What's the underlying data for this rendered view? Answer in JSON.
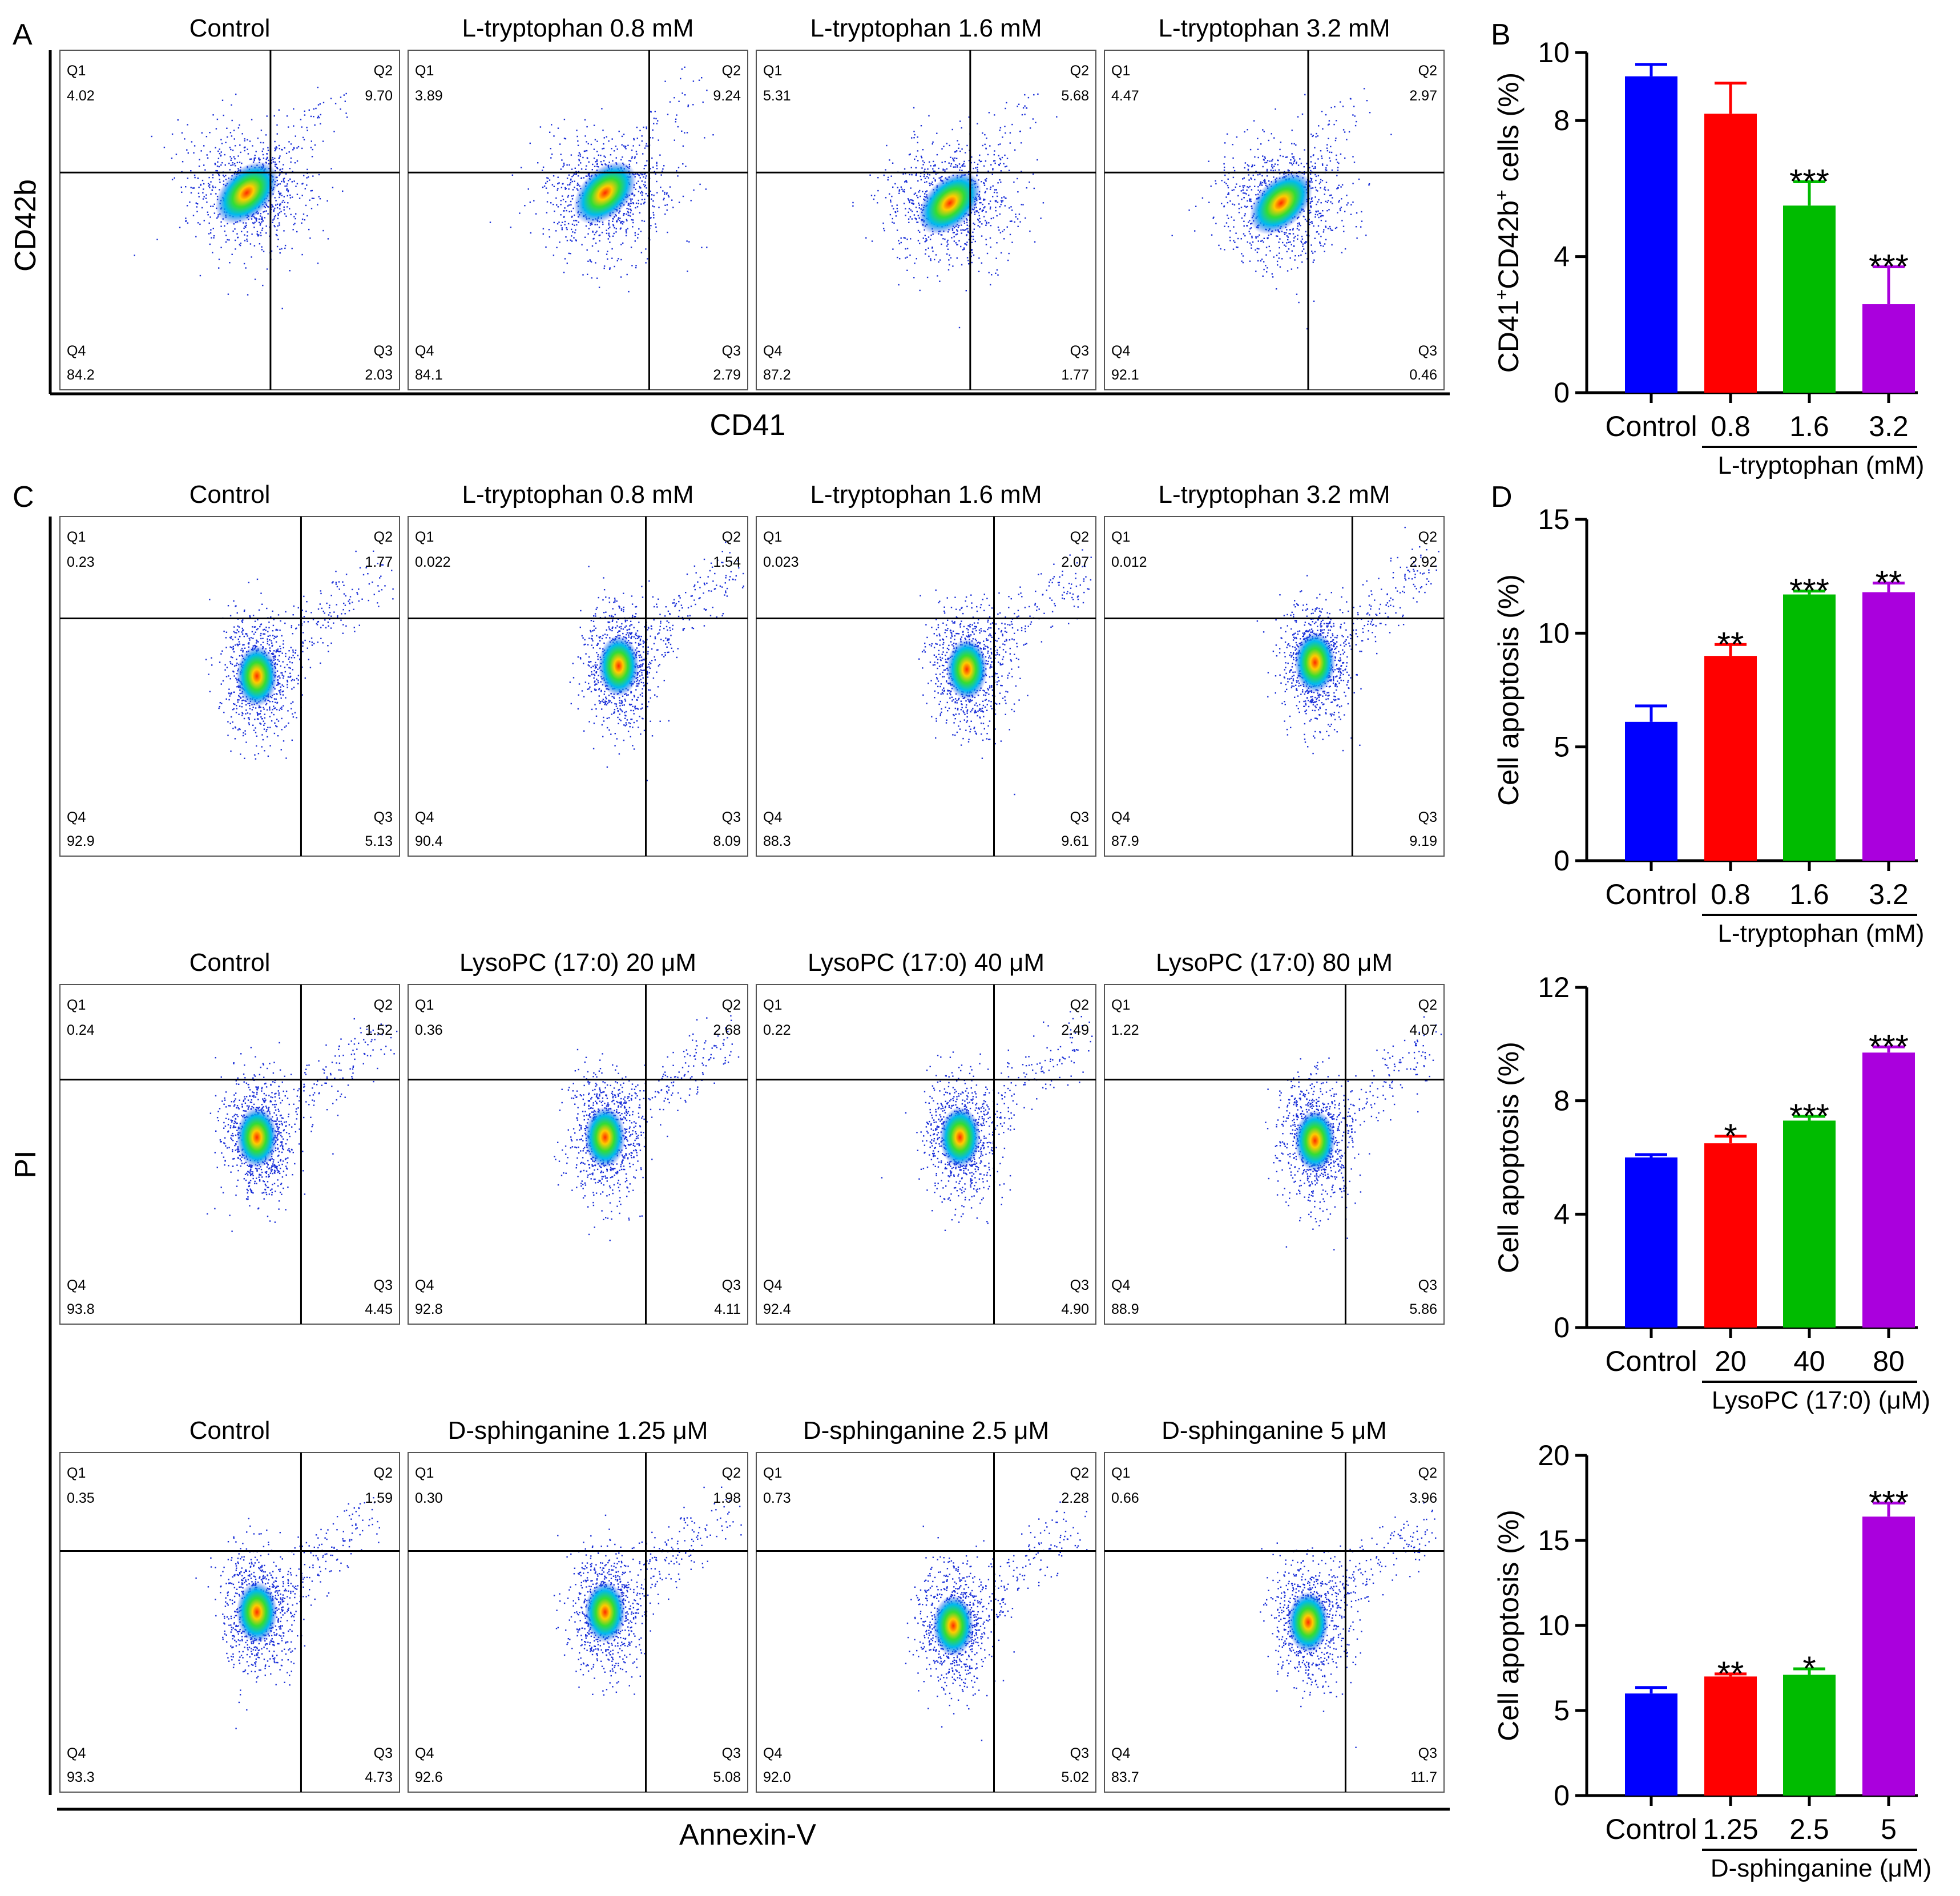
{
  "panel_letters": [
    "A",
    "B",
    "C",
    "D"
  ],
  "colors": {
    "control": "#0000FF",
    "dose1": "#FF0000",
    "dose2": "#00BB00",
    "dose3": "#AA00DD",
    "axis": "#000000",
    "quadline": "#000000"
  },
  "panelA": {
    "y_label": "CD42b",
    "x_label": "CD41",
    "plots": [
      {
        "title": "Control",
        "q": {
          "q1": "4.02",
          "q2": "9.70",
          "q3": "2.03",
          "q4": "84.2"
        }
      },
      {
        "title": "L-tryptophan 0.8 mM",
        "q": {
          "q1": "3.89",
          "q2": "9.24",
          "q3": "2.79",
          "q4": "84.1"
        }
      },
      {
        "title": "L-tryptophan 1.6 mM",
        "q": {
          "q1": "5.31",
          "q2": "5.68",
          "q3": "1.77",
          "q4": "87.2"
        }
      },
      {
        "title": "L-tryptophan 3.2 mM",
        "q": {
          "q1": "4.47",
          "q2": "2.97",
          "q3": "0.46",
          "q4": "92.1"
        }
      }
    ]
  },
  "panelC": {
    "y_label": "PI",
    "x_label": "Annexin-V",
    "rows": [
      [
        {
          "title": "Control",
          "q": {
            "q1": "0.23",
            "q2": "1.77",
            "q3": "5.13",
            "q4": "92.9"
          }
        },
        {
          "title": "L-tryptophan 0.8 mM",
          "q": {
            "q1": "0.022",
            "q2": "1.54",
            "q3": "8.09",
            "q4": "90.4"
          }
        },
        {
          "title": "L-tryptophan 1.6 mM",
          "q": {
            "q1": "0.023",
            "q2": "2.07",
            "q3": "9.61",
            "q4": "88.3"
          }
        },
        {
          "title": "L-tryptophan 3.2 mM",
          "q": {
            "q1": "0.012",
            "q2": "2.92",
            "q3": "9.19",
            "q4": "87.9"
          }
        }
      ],
      [
        {
          "title": "Control",
          "q": {
            "q1": "0.24",
            "q2": "1.52",
            "q3": "4.45",
            "q4": "93.8"
          }
        },
        {
          "title": "LysoPC (17:0) 20 μM",
          "q": {
            "q1": "0.36",
            "q2": "2.68",
            "q3": "4.11",
            "q4": "92.8"
          }
        },
        {
          "title": "LysoPC (17:0) 40 μM",
          "q": {
            "q1": "0.22",
            "q2": "2.49",
            "q3": "4.90",
            "q4": "92.4"
          }
        },
        {
          "title": "LysoPC (17:0) 80 μM",
          "q": {
            "q1": "1.22",
            "q2": "4.07",
            "q3": "5.86",
            "q4": "88.9"
          }
        }
      ],
      [
        {
          "title": "Control",
          "q": {
            "q1": "0.35",
            "q2": "1.59",
            "q3": "4.73",
            "q4": "93.3"
          }
        },
        {
          "title": "D-sphinganine 1.25 μM",
          "q": {
            "q1": "0.30",
            "q2": "1.98",
            "q3": "5.08",
            "q4": "92.6"
          }
        },
        {
          "title": "D-sphinganine 2.5 μM",
          "q": {
            "q1": "0.73",
            "q2": "2.28",
            "q3": "5.02",
            "q4": "92.0"
          }
        },
        {
          "title": "D-sphinganine 5 μM",
          "q": {
            "q1": "0.66",
            "q2": "3.96",
            "q3": "11.7",
            "q4": "83.7"
          }
        }
      ]
    ]
  },
  "chart_data": [
    {
      "type": "bar",
      "panel": "B",
      "ylabel_parts": [
        "CD41",
        "+",
        "CD42b",
        "+",
        " cells (%)"
      ],
      "categories": [
        "Control",
        "0.8",
        "1.6",
        "3.2"
      ],
      "group_label": "L-tryptophan (mM)",
      "values": [
        9.3,
        8.2,
        5.5,
        2.6
      ],
      "errors": [
        0.35,
        0.9,
        0.7,
        1.1
      ],
      "significance": [
        "",
        "",
        "***",
        "***"
      ],
      "ylim": [
        0,
        10
      ],
      "yticks": [
        0,
        4,
        8,
        10
      ]
    },
    {
      "type": "bar",
      "panel": "D",
      "ylabel": "Cell apoptosis (%)",
      "categories": [
        "Control",
        "0.8",
        "1.6",
        "3.2"
      ],
      "group_label": "L-tryptophan (mM)",
      "values": [
        6.1,
        9.0,
        11.7,
        11.8
      ],
      "errors": [
        0.7,
        0.5,
        0.15,
        0.4
      ],
      "significance": [
        "",
        "**",
        "***",
        "**"
      ],
      "ylim": [
        0,
        15
      ],
      "yticks": [
        0,
        5,
        10,
        15
      ]
    },
    {
      "type": "bar",
      "panel": "D",
      "ylabel": "Cell apoptosis (%)",
      "categories": [
        "Control",
        "20",
        "40",
        "80"
      ],
      "group_label": "LysoPC (17:0) (μM)",
      "values": [
        6.0,
        6.5,
        7.3,
        9.7
      ],
      "errors": [
        0.1,
        0.25,
        0.15,
        0.2
      ],
      "significance": [
        "",
        "*",
        "***",
        "***"
      ],
      "ylim": [
        0,
        12
      ],
      "yticks": [
        0,
        4,
        8,
        12
      ]
    },
    {
      "type": "bar",
      "panel": "D",
      "ylabel": "Cell apoptosis (%)",
      "categories": [
        "Control",
        "1.25",
        "2.5",
        "5"
      ],
      "group_label": "D-sphinganine (μM)",
      "values": [
        6.0,
        7.0,
        7.1,
        16.4
      ],
      "errors": [
        0.35,
        0.15,
        0.35,
        0.8
      ],
      "significance": [
        "",
        "**",
        "*",
        "***"
      ],
      "ylim": [
        0,
        20
      ],
      "yticks": [
        0,
        5,
        10,
        15,
        20
      ]
    }
  ]
}
